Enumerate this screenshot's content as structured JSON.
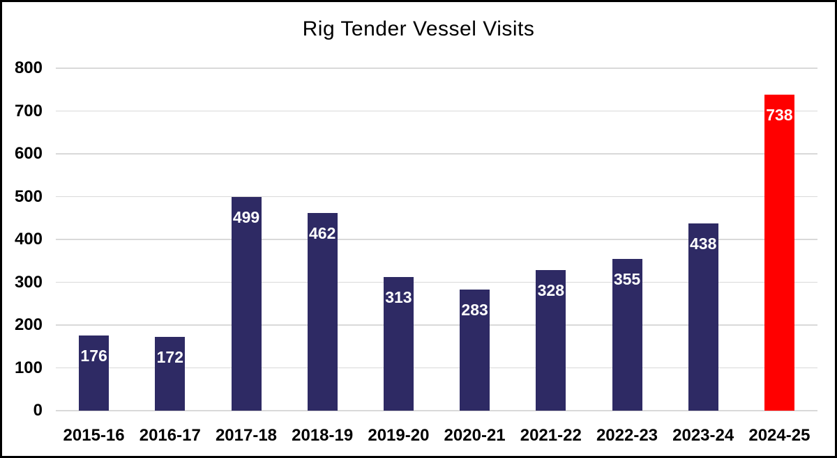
{
  "chart_data": {
    "type": "bar",
    "title": "Rig Tender Vessel Visits",
    "categories": [
      "2015-16",
      "2016-17",
      "2017-18",
      "2018-19",
      "2019-20",
      "2020-21",
      "2021-22",
      "2022-23",
      "2023-24",
      "2024-25"
    ],
    "values": [
      176,
      172,
      499,
      462,
      313,
      283,
      328,
      355,
      438,
      738
    ],
    "xlabel": "",
    "ylabel": "",
    "ylim": [
      0,
      800
    ],
    "yticks": [
      0,
      100,
      200,
      300,
      400,
      500,
      600,
      700,
      800
    ],
    "grid": "horizontal",
    "legend": "none",
    "data_labels": {
      "position": "inside-end",
      "color": "#ffffff"
    },
    "highlight_index": 9
  },
  "colors": {
    "bar_default": "#2e2a64",
    "bar_highlight": "#ff0000",
    "gridline": "#d9d9d9",
    "text": "#000000",
    "background": "#ffffff",
    "border": "#000000"
  }
}
